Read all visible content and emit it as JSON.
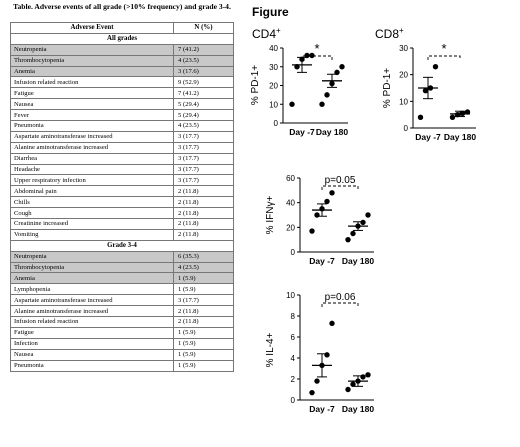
{
  "table": {
    "title": "Table. Adverse events of all grade (>10% frequency) and grade 3-4.",
    "headers": [
      "Adverse Event",
      "N (%)"
    ],
    "sections": [
      {
        "label": "All grades",
        "rows": [
          {
            "event": "Neutropenia",
            "n": "7 (41.2)",
            "shaded": true
          },
          {
            "event": "Thrombocytopenia",
            "n": "4 (23.5)",
            "shaded": true
          },
          {
            "event": "Anemia",
            "n": "3 (17.6)",
            "shaded": true
          },
          {
            "event": "Infusion related reaction",
            "n": "9 (52.9)",
            "shaded": false
          },
          {
            "event": "Fatigue",
            "n": "7 (41.2)",
            "shaded": false
          },
          {
            "event": "Nausea",
            "n": "5 (29.4)",
            "shaded": false
          },
          {
            "event": "Fever",
            "n": "5 (29.4)",
            "shaded": false
          },
          {
            "event": "Pneumonia",
            "n": "4 (23.5)",
            "shaded": false
          },
          {
            "event": "Aspartate aminotransferase increased",
            "n": "3 (17.7)",
            "shaded": false
          },
          {
            "event": "Alanine aminotransferase increased",
            "n": "3 (17.7)",
            "shaded": false
          },
          {
            "event": "Diarrhea",
            "n": "3 (17.7)",
            "shaded": false
          },
          {
            "event": "Headache",
            "n": "3 (17.7)",
            "shaded": false
          },
          {
            "event": "Upper respiratory infection",
            "n": "3 (17.7)",
            "shaded": false
          },
          {
            "event": "Abdominal pain",
            "n": "2 (11.8)",
            "shaded": false
          },
          {
            "event": "Chills",
            "n": "2 (11.8)",
            "shaded": false
          },
          {
            "event": "Cough",
            "n": "2 (11.8)",
            "shaded": false
          },
          {
            "event": "Creatinine increased",
            "n": "2 (11.8)",
            "shaded": false
          },
          {
            "event": "Vomiting",
            "n": "2 (11.8)",
            "shaded": false
          }
        ]
      },
      {
        "label": "Grade 3-4",
        "rows": [
          {
            "event": "Neutropenia",
            "n": "6 (35.3)",
            "shaded": true
          },
          {
            "event": "Thrombocytopenia",
            "n": "4 (23.5)",
            "shaded": true
          },
          {
            "event": "Anemia",
            "n": "1 (5.9)",
            "shaded": true
          },
          {
            "event": "Lymphopenia",
            "n": "1 (5.9)",
            "shaded": false
          },
          {
            "event": "Aspartate aminotransferase increased",
            "n": "3 (17.7)",
            "shaded": false
          },
          {
            "event": "Alanine aminotransferase increased",
            "n": "2 (11.8)",
            "shaded": false
          },
          {
            "event": "Infusion related reaction",
            "n": "2 (11.8)",
            "shaded": false
          },
          {
            "event": "Fatigue",
            "n": "1 (5.9)",
            "shaded": false
          },
          {
            "event": "Infection",
            "n": "1 (5.9)",
            "shaded": false
          },
          {
            "event": "Nausea",
            "n": "1 (5.9)",
            "shaded": false
          },
          {
            "event": "Pneumonia",
            "n": "1 (5.9)",
            "shaded": false
          }
        ]
      }
    ]
  },
  "figure": {
    "heading": "Figure",
    "cd4_label": "CD4",
    "cd8_label": "CD8",
    "superscript": "+"
  },
  "colors": {
    "shade": "#c8c8c8",
    "ink": "#000000"
  },
  "chart_data": [
    {
      "type": "scatter",
      "panel": "CD4+",
      "ylabel": "% PD-1+",
      "categories": [
        "Day -7",
        "Day 180"
      ],
      "ylim": [
        0,
        40
      ],
      "yticks": [
        0,
        10,
        20,
        30,
        40
      ],
      "series": [
        {
          "values": [
            10,
            30,
            34,
            36,
            36
          ]
        },
        {
          "values": [
            10,
            15,
            21,
            27,
            30
          ]
        }
      ],
      "mean": [
        31,
        22.5
      ],
      "sem_upper": [
        35,
        26
      ],
      "sem_lower": [
        27,
        19
      ],
      "annotation": "*"
    },
    {
      "type": "scatter",
      "panel": "CD8+",
      "ylabel": "% PD-1+",
      "categories": [
        "Day -7",
        "Day 180"
      ],
      "ylim": [
        0,
        30
      ],
      "yticks": [
        0,
        10,
        20,
        30
      ],
      "series": [
        {
          "values": [
            4,
            14,
            15,
            23
          ]
        },
        {
          "values": [
            4,
            5,
            5.5,
            6
          ]
        }
      ],
      "mean": [
        15,
        5.3
      ],
      "sem_upper": [
        19,
        6.3
      ],
      "sem_lower": [
        11,
        4.3
      ],
      "annotation": "*"
    },
    {
      "type": "scatter",
      "panel": "IFNγ",
      "ylabel": "% IFNγ+",
      "categories": [
        "Day -7",
        "Day 180"
      ],
      "ylim": [
        0,
        60
      ],
      "yticks": [
        0,
        20,
        40,
        60
      ],
      "series": [
        {
          "values": [
            17,
            30,
            35,
            41,
            48
          ]
        },
        {
          "values": [
            10,
            15,
            21,
            24,
            30
          ]
        }
      ],
      "mean": [
        34,
        21
      ],
      "sem_upper": [
        39,
        24.5
      ],
      "sem_lower": [
        29,
        17.5
      ],
      "annotation": "p=0.05"
    },
    {
      "type": "scatter",
      "panel": "IL-4",
      "ylabel": "% IL-4+",
      "categories": [
        "Day -7",
        "Day 180"
      ],
      "ylim": [
        0,
        10
      ],
      "yticks": [
        0,
        2,
        4,
        6,
        8,
        10
      ],
      "series": [
        {
          "values": [
            0.7,
            1.8,
            3.3,
            4.3,
            7.3
          ]
        },
        {
          "values": [
            1.0,
            1.5,
            1.8,
            2.2,
            2.4
          ]
        }
      ],
      "mean": [
        3.3,
        1.8
      ],
      "sem_upper": [
        4.4,
        2.3
      ],
      "sem_lower": [
        2.2,
        1.3
      ],
      "annotation": "p=0.06"
    }
  ]
}
